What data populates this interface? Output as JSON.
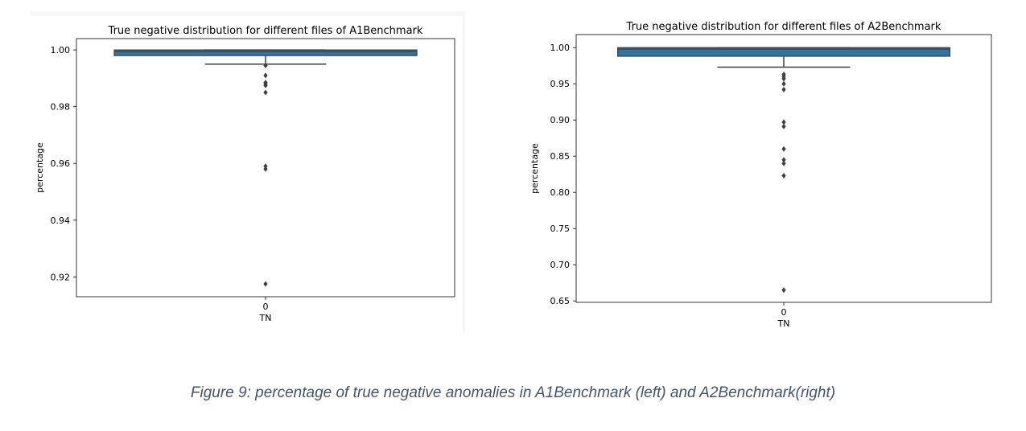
{
  "colors": {
    "box_fill": "#3274a1",
    "line": "#3f3f3f",
    "flier": "#3f3f3f"
  },
  "chart_data": [
    {
      "type": "box",
      "title": "True negative distribution for different files of A1Benchmark",
      "xlabel": "TN",
      "ylabel": "percentage",
      "categories": [
        "0"
      ],
      "ylim": [
        0.913,
        1.004
      ],
      "yticks": [
        0.92,
        0.94,
        0.96,
        0.98,
        1.0
      ],
      "ytick_labels": [
        "0.92",
        "0.94",
        "0.96",
        "0.98",
        "1.00"
      ],
      "box": {
        "q1": 0.998,
        "median": 0.9995,
        "q3": 1.0,
        "whisker_low": 0.995,
        "whisker_high": 1.0
      },
      "fliers": [
        0.9945,
        0.991,
        0.9885,
        0.988,
        0.9875,
        0.985,
        0.959,
        0.958,
        0.9175
      ]
    },
    {
      "type": "box",
      "title": "True negative distribution for different files of A2Benchmark",
      "xlabel": "TN",
      "ylabel": "percentage",
      "categories": [
        "0"
      ],
      "ylim": [
        0.648,
        1.018
      ],
      "yticks": [
        0.65,
        0.7,
        0.75,
        0.8,
        0.85,
        0.9,
        0.95,
        1.0
      ],
      "ytick_labels": [
        "0.65",
        "0.70",
        "0.75",
        "0.80",
        "0.85",
        "0.90",
        "0.95",
        "1.00"
      ],
      "box": {
        "q1": 0.988,
        "median": 0.998,
        "q3": 1.0,
        "whisker_low": 0.973,
        "whisker_high": 1.0
      },
      "fliers": [
        0.963,
        0.96,
        0.957,
        0.95,
        0.942,
        0.897,
        0.891,
        0.86,
        0.845,
        0.84,
        0.823,
        0.665
      ]
    }
  ],
  "caption": "Figure 9: percentage of true negative anomalies in A1Benchmark (left) and A2Benchmark(right)"
}
